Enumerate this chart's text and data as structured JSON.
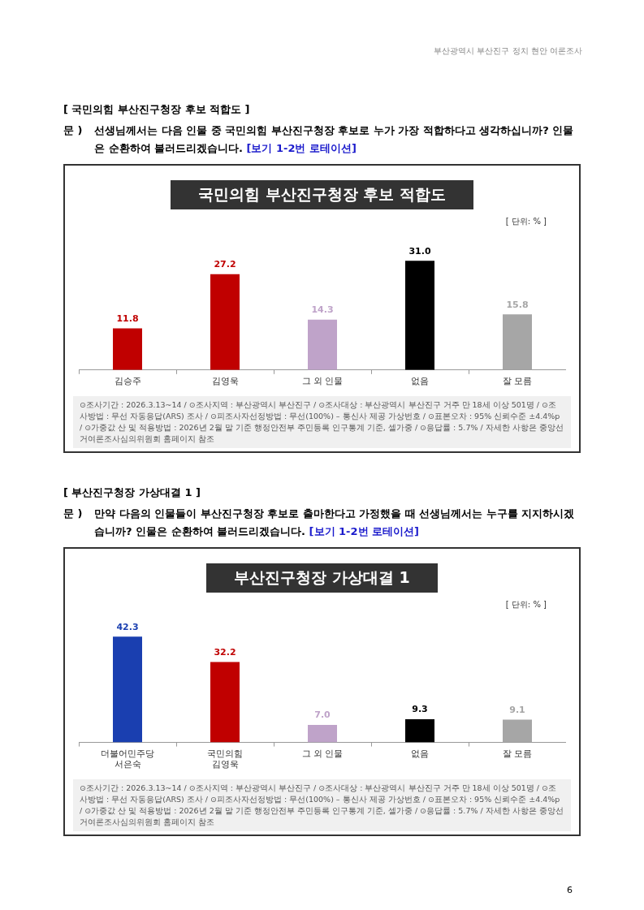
{
  "chart_data": [
    {
      "type": "bar",
      "title": "국민의힘 부산진구청장 후보 적합도",
      "categories": [
        "김승주",
        "김영욱",
        "그 외 인물",
        "없음",
        "잘 모름"
      ],
      "values": [
        11.8,
        27.2,
        14.3,
        31.0,
        15.8
      ],
      "colors": [
        "#c00000",
        "#c00000",
        "#bfa3c9",
        "#000000",
        "#a6a6a6"
      ],
      "value_labels": [
        "11.8",
        "27.2",
        "14.3",
        "31.0",
        "15.8"
      ],
      "annotations": [
        "부산광역시 부산진구 정치 현안 여론조사",
        "[ 국민의힘 부산진구청장 후보 적합도 ]",
        "문 )",
        "선생님께서는 다음 인물 중 국민의힘 부산진구청장 후보로 누가 가장 적합하다고 생각하십니까? 인물은 순환하여 불러드리겠습니다.",
        "[보기 1-2번 로테이션]",
        "[ 단위: % ]",
        "⊙조사기간 : 2026.3.13~14 / ⊙조사지역 : 부산광역시 부산진구 / ⊙조사대상 : 부산광역시 부산진구 거주 만 18세 이상 501명 / ⊙조사방법 : 무선 자동응답(ARS) 조사 / ⊙피조사자선정방법 : 무선(100%) – 통신사 제공 가상번호 / ⊙표본오차 : 95% 신뢰수준 ±4.4%p / ⊙가중값 산 및 적용방법 : 2026년 2월 말 기준 행정안전부 주민등록 인구통계 기준, 셀가중 / ⊙응답률 : 5.7% / 자세한 사항은 중앙선거여론조사심의위원회 홈페이지 참조"
      ]
    },
    {
      "type": "bar",
      "title": "부산진구청장 가상대결 1",
      "categories": [
        "더불어민주당\n서은숙",
        "국민의힘\n김영욱",
        "그 외 인물",
        "없음",
        "잘 모름"
      ],
      "values": [
        42.3,
        32.2,
        7.0,
        9.3,
        9.1
      ],
      "colors": [
        "#1a3fb0",
        "#c00000",
        "#bfa3c9",
        "#000000",
        "#a6a6a6"
      ],
      "value_labels": [
        "42.3",
        "32.2",
        "7.0",
        "9.3",
        "9.1"
      ],
      "annotations": [
        "[ 부산진구청장 가상대결 1 ]",
        "문 )",
        "만약 다음의 인물들이 부산진구청장 후보로 출마한다고 가정했을 때 선생님께서는 누구를 지지하시겠습니까? 인물은 순환하여 불러드리겠습니다.",
        "[보기 1-2번 로테이션]",
        "[ 단위: % ]",
        "⊙조사기간 : 2026.3.13~14 / ⊙조사지역 : 부산광역시 부산진구 / ⊙조사대상 : 부산광역시 부산진구 거주 만 18세 이상 501명 / ⊙조사방법 : 무선 자동응답(ARS) 조사 / ⊙피조사자선정방법 : 무선(100%) – 통신사 제공 가상번호 / ⊙표본오차 : 95% 신뢰수준 ±4.4%p / ⊙가중값 산 및 적용방법 : 2026년 2월 말 기준 행정안전부 주민등록 인구통계 기준, 셀가중 / ⊙응답률 : 5.7% / 자세한 사항은 중앙선거여론조사심의위원회 홈페이지 참조",
        "6"
      ]
    }
  ]
}
